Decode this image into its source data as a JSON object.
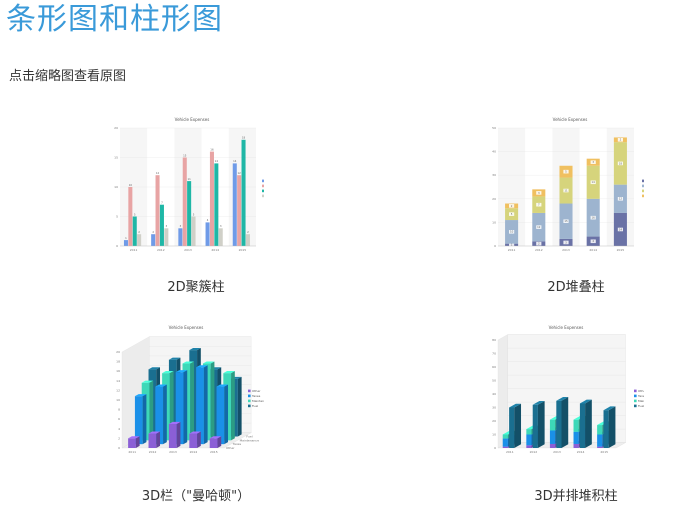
{
  "page": {
    "title": "条形图和柱形图",
    "subtitle": "点击缩略图查看原图"
  },
  "thumbnails": [
    {
      "caption": "2D聚簇柱"
    },
    {
      "caption": "2D堆叠柱"
    },
    {
      "caption": "3D栏（\"曼哈顿\"）"
    },
    {
      "caption": "3D并排堆积柱"
    }
  ],
  "chart_data": [
    {
      "type": "bar",
      "title": "Vehicle Expenses",
      "categories": [
        "2011",
        "2012",
        "2013",
        "2014",
        "2015"
      ],
      "series": [
        {
          "name": "Fuel",
          "values": [
            1,
            2,
            3,
            4,
            14
          ]
        },
        {
          "name": "Taxes",
          "values": [
            10,
            12,
            15,
            16,
            12
          ]
        },
        {
          "name": "Maintenance",
          "values": [
            5,
            7,
            11,
            14,
            18
          ]
        },
        {
          "name": "Other",
          "values": [
            2,
            3,
            5,
            3,
            2
          ]
        }
      ],
      "ylim": [
        0,
        20
      ],
      "yticks": [
        "0",
        "5",
        "10",
        "15",
        "20"
      ],
      "colors": [
        "#6f9be8",
        "#e8a4a4",
        "#1fb7a6",
        "#d0d0c8"
      ],
      "legend": "right"
    },
    {
      "type": "bar",
      "stacked": true,
      "title": "Vehicle Expenses",
      "categories": [
        "2011",
        "2012",
        "2013",
        "2014",
        "2015"
      ],
      "series": [
        {
          "name": "Fuel",
          "values": [
            1,
            2,
            3,
            4,
            14
          ]
        },
        {
          "name": "Taxes",
          "values": [
            10,
            12,
            15,
            16,
            12
          ]
        },
        {
          "name": "Maintenance",
          "values": [
            5,
            7,
            11,
            14,
            18
          ]
        },
        {
          "name": "Other",
          "values": [
            2,
            3,
            5,
            3,
            2
          ]
        }
      ],
      "ylim": [
        0,
        50
      ],
      "yticks": [
        "0",
        "10",
        "20",
        "30",
        "40",
        "50"
      ],
      "colors": [
        "#6a72a6",
        "#9db4cf",
        "#d6d47c",
        "#f0c060"
      ],
      "legend": "right"
    },
    {
      "type": "bar",
      "style": "3d-manhattan",
      "title": "Vehicle Expenses",
      "categories": [
        "2011",
        "2012",
        "2013",
        "2014",
        "2015"
      ],
      "series": [
        {
          "name": "Other",
          "values": [
            2,
            3,
            5,
            3,
            2
          ]
        },
        {
          "name": "Taxes",
          "values": [
            10,
            12,
            15,
            16,
            12
          ]
        },
        {
          "name": "Maintenance",
          "values": [
            12,
            14,
            16,
            16,
            14
          ]
        },
        {
          "name": "Fuel",
          "values": [
            14,
            16,
            18,
            14,
            12
          ]
        }
      ],
      "ylim": [
        0,
        20
      ],
      "yticks": [
        "0",
        "2",
        "4",
        "6",
        "8",
        "10",
        "12",
        "14",
        "16",
        "18",
        "20"
      ],
      "colors": [
        "#8b5fd6",
        "#1a90e8",
        "#3dd8b8",
        "#1a6f90"
      ],
      "legend": "right"
    },
    {
      "type": "bar",
      "style": "3d-stacked",
      "title": "Vehicle Expenses",
      "categories": [
        "2011",
        "2012",
        "2013",
        "2014",
        "2015"
      ],
      "series": [
        {
          "name": "Other",
          "values": [
            1,
            2,
            3,
            3,
            1
          ]
        },
        {
          "name": "Taxes",
          "values": [
            6,
            8,
            10,
            9,
            9
          ]
        },
        {
          "name": "Maintenance",
          "values": [
            3,
            4,
            8,
            9,
            7
          ]
        },
        {
          "name": "Fuel",
          "values": [
            30,
            32,
            35,
            33,
            28
          ]
        }
      ],
      "ylim": [
        0,
        80
      ],
      "yticks": [
        "0",
        "10",
        "20",
        "30",
        "40",
        "50",
        "60",
        "70",
        "80"
      ],
      "colors": [
        "#8b5fd6",
        "#1a90e8",
        "#3dd8b8",
        "#1a6f90"
      ],
      "legend": "right"
    }
  ]
}
